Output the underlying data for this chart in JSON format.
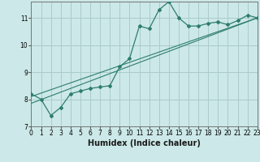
{
  "xlabel": "Humidex (Indice chaleur)",
  "bg_color": "#cce8e8",
  "grid_color": "#aacccc",
  "line_color": "#2e7d6e",
  "x_values": [
    0,
    1,
    2,
    3,
    4,
    5,
    6,
    7,
    8,
    9,
    10,
    11,
    12,
    13,
    14,
    15,
    16,
    17,
    18,
    19,
    20,
    21,
    22,
    23
  ],
  "curve_y": [
    8.2,
    8.0,
    7.4,
    7.7,
    8.2,
    8.3,
    8.4,
    8.45,
    8.5,
    9.2,
    9.5,
    10.7,
    10.6,
    11.3,
    11.6,
    11.0,
    10.7,
    10.7,
    10.8,
    10.85,
    10.75,
    10.9,
    11.1,
    11.0
  ],
  "linear1_pts": [
    [
      0,
      7.85
    ],
    [
      23,
      11.0
    ]
  ],
  "linear2_pts": [
    [
      0,
      8.1
    ],
    [
      23,
      11.0
    ]
  ],
  "xlim": [
    0,
    23
  ],
  "ylim": [
    7.0,
    11.6
  ],
  "yticks": [
    7,
    8,
    9,
    10,
    11
  ],
  "xticks": [
    0,
    1,
    2,
    3,
    4,
    5,
    6,
    7,
    8,
    9,
    10,
    11,
    12,
    13,
    14,
    15,
    16,
    17,
    18,
    19,
    20,
    21,
    22,
    23
  ],
  "tick_fontsize": 5.5,
  "xlabel_fontsize": 7,
  "xlabel_fontweight": "bold"
}
